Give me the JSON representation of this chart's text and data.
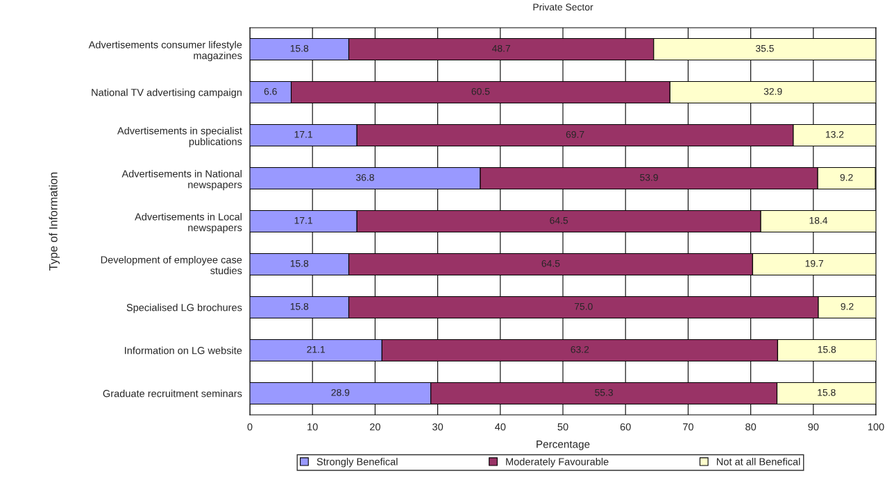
{
  "chart_data": {
    "type": "bar",
    "orientation": "horizontal",
    "stacked": true,
    "title": "Private Sector",
    "xlabel": "Percentage",
    "ylabel": "Type of Information",
    "categories": [
      "Advertisements consumer lifestyle\nmagazines",
      "National TV advertising campaign",
      "Advertisements in specialist\npublications",
      "Advertisements in National\nnewspapers",
      "Advertisements in Local\nnewspapers",
      "Development of employee case\nstudies",
      "Specialised LG brochures",
      "Information on LG website",
      "Graduate recruitment seminars"
    ],
    "series": [
      {
        "name": "Strongly Benefical",
        "color": "#9999ff",
        "values": [
          15.8,
          6.6,
          17.1,
          36.8,
          17.1,
          15.8,
          15.8,
          21.1,
          28.9
        ]
      },
      {
        "name": "Moderately Favourable",
        "color": "#993366",
        "values": [
          48.7,
          60.5,
          69.7,
          53.9,
          64.5,
          64.5,
          75,
          63.2,
          55.3
        ],
        "value_labels": [
          "48.7",
          "60.5",
          "69.7",
          "53.9",
          "64.5",
          "64.5",
          "75.0",
          "63.2",
          "55.3"
        ]
      },
      {
        "name": "Not at all Benefical",
        "color": "#ffffcc",
        "values": [
          35.5,
          32.9,
          13.2,
          9.2,
          18.4,
          19.7,
          9.2,
          15.8,
          15.8
        ]
      }
    ],
    "xlim": [
      0,
      100
    ],
    "xticks": [
      0,
      10,
      20,
      30,
      40,
      50,
      60,
      70,
      80,
      90,
      100
    ],
    "grid": "x",
    "legend": "bottom",
    "data_labels": true
  }
}
